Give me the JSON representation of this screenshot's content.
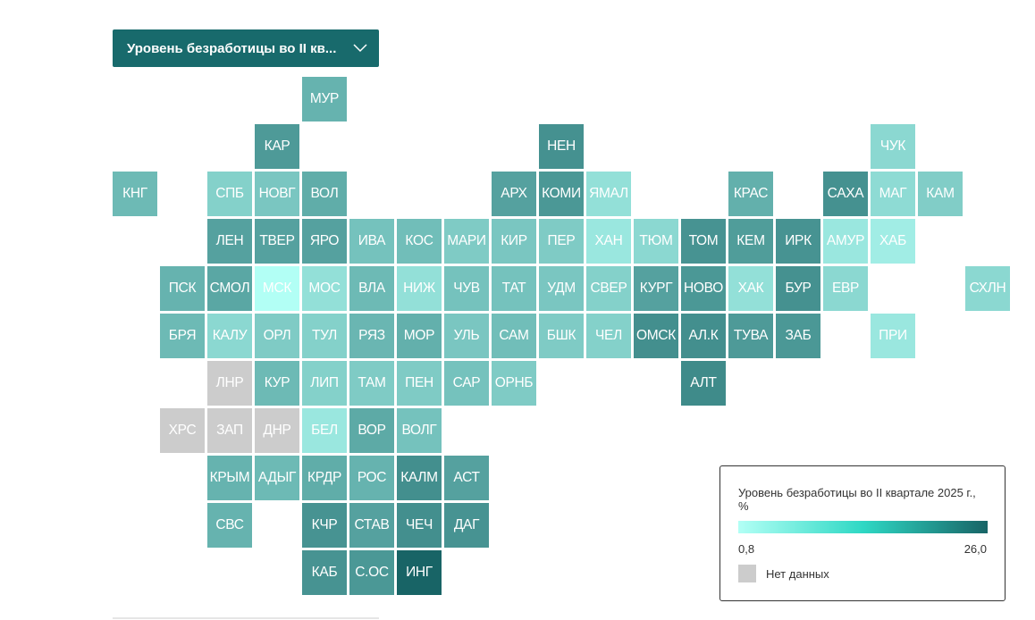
{
  "dropdown": {
    "label": "Уровень безработицы во II кв...",
    "icon": "chevron-down-icon"
  },
  "legend": {
    "title": "Уровень безработицы во II квартале 2025 г., %",
    "min_label": "0,8",
    "max_label": "26,0",
    "min_value": 0.8,
    "max_value": 26.0,
    "color_low": "#b2fff5",
    "color_high": "#186466",
    "no_data_label": "Нет данных",
    "no_data_color": "#cccccc"
  },
  "regions": [
    {
      "label": "МУР",
      "col": 6,
      "row": 0,
      "value": 6.0
    },
    {
      "label": "КАР",
      "col": 5,
      "row": 1,
      "value": 10.5
    },
    {
      "label": "НЕН",
      "col": 11,
      "row": 1,
      "value": 12.5
    },
    {
      "label": "ЧУК",
      "col": 18,
      "row": 1,
      "value": 2.0
    },
    {
      "label": "КНГ",
      "col": 2,
      "row": 2,
      "value": 5.0
    },
    {
      "label": "СПБ",
      "col": 4,
      "row": 2,
      "value": 2.5
    },
    {
      "label": "НОВГ",
      "col": 5,
      "row": 2,
      "value": 3.5
    },
    {
      "label": "ВОЛ",
      "col": 6,
      "row": 2,
      "value": 7.0
    },
    {
      "label": "АРХ",
      "col": 10,
      "row": 2,
      "value": 9.0
    },
    {
      "label": "КОМИ",
      "col": 11,
      "row": 2,
      "value": 11.0
    },
    {
      "label": "ЯМАЛ",
      "col": 12,
      "row": 2,
      "value": 1.5
    },
    {
      "label": "КРАС",
      "col": 15,
      "row": 2,
      "value": 6.5
    },
    {
      "label": "САХА",
      "col": 17,
      "row": 2,
      "value": 12.5
    },
    {
      "label": "МАГ",
      "col": 18,
      "row": 2,
      "value": 1.8
    },
    {
      "label": "КАМ",
      "col": 19,
      "row": 2,
      "value": 2.8
    },
    {
      "label": "ЛЕН",
      "col": 4,
      "row": 3,
      "value": 9.0
    },
    {
      "label": "ТВЕР",
      "col": 5,
      "row": 3,
      "value": 9.0
    },
    {
      "label": "ЯРО",
      "col": 6,
      "row": 3,
      "value": 9.0
    },
    {
      "label": "ИВА",
      "col": 7,
      "row": 3,
      "value": 4.0
    },
    {
      "label": "КОС",
      "col": 8,
      "row": 3,
      "value": 4.5
    },
    {
      "label": "МАРИ",
      "col": 9,
      "row": 3,
      "value": 3.0
    },
    {
      "label": "КИР",
      "col": 10,
      "row": 3,
      "value": 3.5
    },
    {
      "label": "ПЕР",
      "col": 11,
      "row": 3,
      "value": 3.0
    },
    {
      "label": "ХАН",
      "col": 12,
      "row": 3,
      "value": 1.2
    },
    {
      "label": "ТЮМ",
      "col": 13,
      "row": 3,
      "value": 2.0
    },
    {
      "label": "ТОМ",
      "col": 14,
      "row": 3,
      "value": 12.0
    },
    {
      "label": "КЕМ",
      "col": 15,
      "row": 3,
      "value": 10.0
    },
    {
      "label": "ИРК",
      "col": 16,
      "row": 3,
      "value": 12.0
    },
    {
      "label": "АМУР",
      "col": 17,
      "row": 3,
      "value": 1.2
    },
    {
      "label": "ХАБ",
      "col": 18,
      "row": 3,
      "value": 1.0
    },
    {
      "label": "ПСК",
      "col": 3,
      "row": 4,
      "value": 6.0
    },
    {
      "label": "СМОЛ",
      "col": 4,
      "row": 4,
      "value": 8.0
    },
    {
      "label": "МСК",
      "col": 5,
      "row": 4,
      "value": 0.8
    },
    {
      "label": "МОС",
      "col": 6,
      "row": 4,
      "value": 1.5
    },
    {
      "label": "ВЛА",
      "col": 7,
      "row": 4,
      "value": 5.0
    },
    {
      "label": "НИЖ",
      "col": 8,
      "row": 4,
      "value": 1.5
    },
    {
      "label": "ЧУВ",
      "col": 9,
      "row": 4,
      "value": 4.0
    },
    {
      "label": "ТАТ",
      "col": 10,
      "row": 4,
      "value": 4.0
    },
    {
      "label": "УДМ",
      "col": 11,
      "row": 4,
      "value": 3.5
    },
    {
      "label": "СВЕР",
      "col": 12,
      "row": 4,
      "value": 2.5
    },
    {
      "label": "КУРГ",
      "col": 13,
      "row": 4,
      "value": 9.0
    },
    {
      "label": "НОВО",
      "col": 14,
      "row": 4,
      "value": 11.0
    },
    {
      "label": "ХАК",
      "col": 15,
      "row": 4,
      "value": 1.5
    },
    {
      "label": "БУР",
      "col": 16,
      "row": 4,
      "value": 12.5
    },
    {
      "label": "ЕВР",
      "col": 17,
      "row": 4,
      "value": 2.0
    },
    {
      "label": "СХЛН",
      "col": 20,
      "row": 4,
      "value": 2.0
    },
    {
      "label": "БРЯ",
      "col": 3,
      "row": 5,
      "value": 5.0
    },
    {
      "label": "КАЛУ",
      "col": 4,
      "row": 5,
      "value": 2.0
    },
    {
      "label": "ОРЛ",
      "col": 5,
      "row": 5,
      "value": 3.0
    },
    {
      "label": "ТУЛ",
      "col": 6,
      "row": 5,
      "value": 2.5
    },
    {
      "label": "РЯЗ",
      "col": 7,
      "row": 5,
      "value": 5.5
    },
    {
      "label": "МОР",
      "col": 8,
      "row": 5,
      "value": 6.5
    },
    {
      "label": "УЛЬ",
      "col": 9,
      "row": 5,
      "value": 3.5
    },
    {
      "label": "САМ",
      "col": 10,
      "row": 5,
      "value": 4.5
    },
    {
      "label": "БШК",
      "col": 11,
      "row": 5,
      "value": 3.0
    },
    {
      "label": "ЧЕЛ",
      "col": 12,
      "row": 5,
      "value": 2.5
    },
    {
      "label": "ОМСК",
      "col": 13,
      "row": 5,
      "value": 13.0
    },
    {
      "label": "АЛ.К",
      "col": 14,
      "row": 5,
      "value": 13.0
    },
    {
      "label": "ТУВА",
      "col": 15,
      "row": 5,
      "value": 10.5
    },
    {
      "label": "ЗАБ",
      "col": 16,
      "row": 5,
      "value": 11.0
    },
    {
      "label": "ПРИ",
      "col": 18,
      "row": 5,
      "value": 1.2
    },
    {
      "label": "ЛНР",
      "col": 4,
      "row": 6,
      "value": null
    },
    {
      "label": "КУР",
      "col": 5,
      "row": 6,
      "value": 5.0
    },
    {
      "label": "ЛИП",
      "col": 6,
      "row": 6,
      "value": 2.5
    },
    {
      "label": "ТАМ",
      "col": 7,
      "row": 6,
      "value": 3.0
    },
    {
      "label": "ПЕН",
      "col": 8,
      "row": 6,
      "value": 3.0
    },
    {
      "label": "САР",
      "col": 9,
      "row": 6,
      "value": 4.0
    },
    {
      "label": "ОРНБ",
      "col": 10,
      "row": 6,
      "value": 3.0
    },
    {
      "label": "АЛТ",
      "col": 14,
      "row": 6,
      "value": 14.0
    },
    {
      "label": "ХРС",
      "col": 3,
      "row": 7,
      "value": null
    },
    {
      "label": "ЗАП",
      "col": 4,
      "row": 7,
      "value": null
    },
    {
      "label": "ДНР",
      "col": 5,
      "row": 7,
      "value": null
    },
    {
      "label": "БЕЛ",
      "col": 6,
      "row": 7,
      "value": 1.2
    },
    {
      "label": "ВОР",
      "col": 7,
      "row": 7,
      "value": 7.5
    },
    {
      "label": "ВОЛГ",
      "col": 8,
      "row": 7,
      "value": 4.0
    },
    {
      "label": "КРЫМ",
      "col": 4,
      "row": 8,
      "value": 6.0
    },
    {
      "label": "АДЫГ",
      "col": 5,
      "row": 8,
      "value": 5.0
    },
    {
      "label": "КРДР",
      "col": 6,
      "row": 8,
      "value": 7.0
    },
    {
      "label": "РОС",
      "col": 7,
      "row": 8,
      "value": 6.0
    },
    {
      "label": "КАЛМ",
      "col": 8,
      "row": 8,
      "value": 13.0
    },
    {
      "label": "АСТ",
      "col": 9,
      "row": 8,
      "value": 9.0
    },
    {
      "label": "СВС",
      "col": 4,
      "row": 9,
      "value": 6.0
    },
    {
      "label": "КЧР",
      "col": 6,
      "row": 9,
      "value": 12.0
    },
    {
      "label": "СТАВ",
      "col": 7,
      "row": 9,
      "value": 9.0
    },
    {
      "label": "ЧЕЧ",
      "col": 8,
      "row": 9,
      "value": 13.0
    },
    {
      "label": "ДАГ",
      "col": 9,
      "row": 9,
      "value": 12.0
    },
    {
      "label": "КАБ",
      "col": 6,
      "row": 10,
      "value": 12.0
    },
    {
      "label": "С.ОС",
      "col": 7,
      "row": 10,
      "value": 11.0
    },
    {
      "label": "ИНГ",
      "col": 8,
      "row": 10,
      "value": 26.0
    }
  ]
}
